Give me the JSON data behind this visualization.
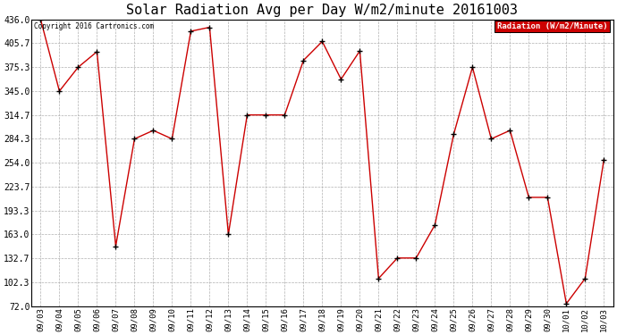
{
  "title": "Solar Radiation Avg per Day W/m2/minute 20161003",
  "copyright_text": "Copyright 2016 Cartronics.com",
  "legend_label": "Radiation (W/m2/Minute)",
  "dates": [
    "09/03",
    "09/04",
    "09/05",
    "09/06",
    "09/07",
    "09/08",
    "09/09",
    "09/10",
    "09/11",
    "09/12",
    "09/13",
    "09/14",
    "09/15",
    "09/16",
    "09/17",
    "09/18",
    "09/19",
    "09/20",
    "09/21",
    "09/22",
    "09/23",
    "09/24",
    "09/25",
    "09/26",
    "09/27",
    "09/28",
    "09/29",
    "09/30",
    "10/01",
    "10/02",
    "10/03"
  ],
  "values": [
    436.0,
    345.0,
    375.3,
    395.0,
    148.0,
    284.3,
    295.0,
    284.3,
    421.0,
    426.0,
    163.0,
    314.7,
    314.7,
    314.7,
    384.0,
    408.0,
    360.0,
    396.0,
    107.0,
    133.0,
    133.0,
    175.0,
    290.0,
    375.3,
    284.3,
    295.0,
    210.0,
    210.0,
    75.0,
    107.0,
    258.0
  ],
  "line_color": "#cc0000",
  "marker": "+",
  "marker_color": "#000000",
  "bg_color": "#ffffff",
  "grid_color": "#b0b0b0",
  "ylim": [
    72.0,
    436.0
  ],
  "yticks": [
    72.0,
    102.3,
    132.7,
    163.0,
    193.3,
    223.7,
    254.0,
    284.3,
    314.7,
    345.0,
    375.3,
    405.7,
    436.0
  ],
  "title_fontsize": 11,
  "legend_bg": "#cc0000",
  "legend_text_color": "#ffffff",
  "fig_width": 6.9,
  "fig_height": 3.75
}
